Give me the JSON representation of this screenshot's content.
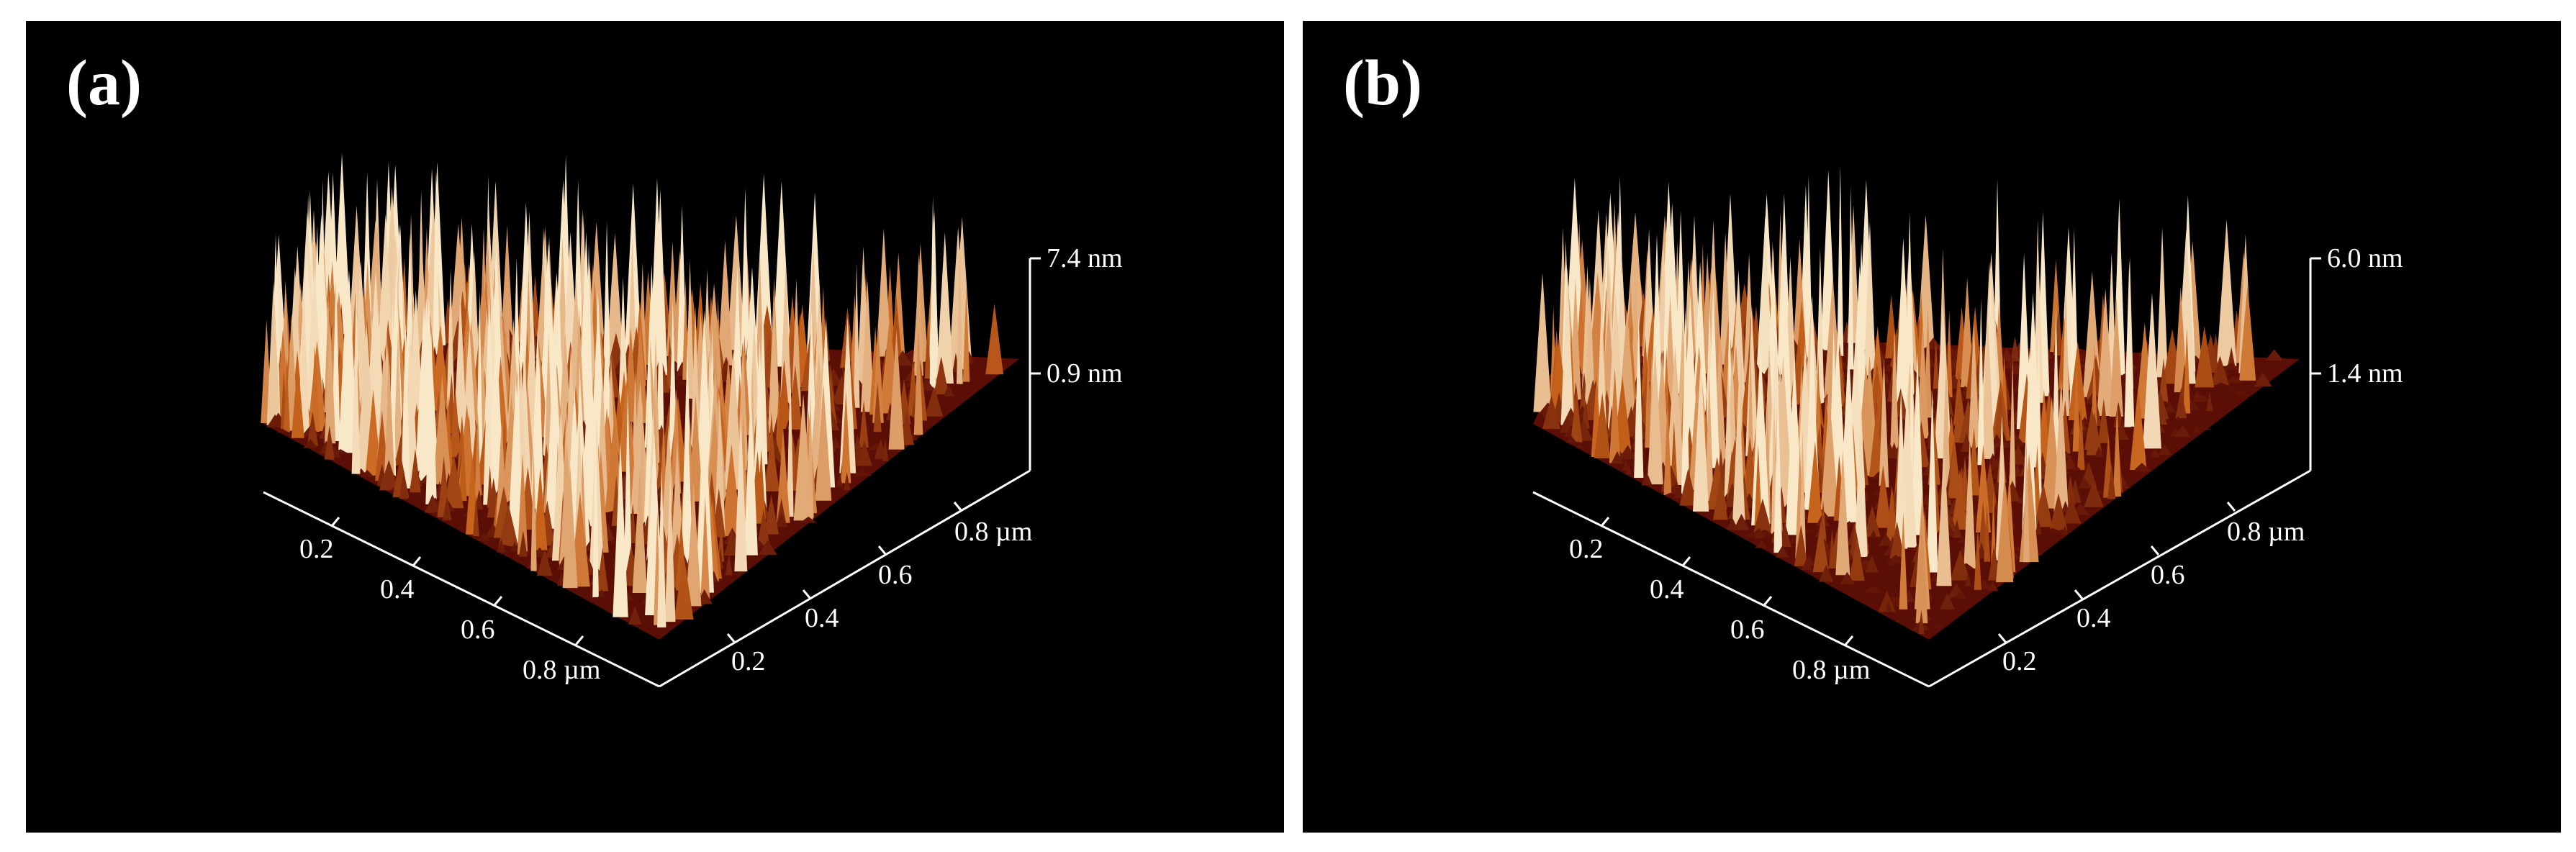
{
  "panels": [
    {
      "letter": "(a)",
      "z_max_label": "7.4 nm",
      "z_mid_label": "0.9 nm",
      "x_ticks": [
        "0.2",
        "0.4",
        "0.6",
        "0.8 µm"
      ],
      "y_ticks": [
        "0.2",
        "0.4",
        "0.6",
        "0.8 µm"
      ]
    },
    {
      "letter": "(b)",
      "z_max_label": "6.0 nm",
      "z_mid_label": "1.4 nm",
      "x_ticks": [
        "0.2",
        "0.4",
        "0.6",
        "0.8 µm"
      ],
      "y_ticks": [
        "0.2",
        "0.4",
        "0.6",
        "0.8 µm"
      ]
    }
  ],
  "colors": {
    "background": "#000000",
    "surface_low": "#5a0e05",
    "surface_mid": "#c8641c",
    "surface_high": "#f8e8c8"
  }
}
